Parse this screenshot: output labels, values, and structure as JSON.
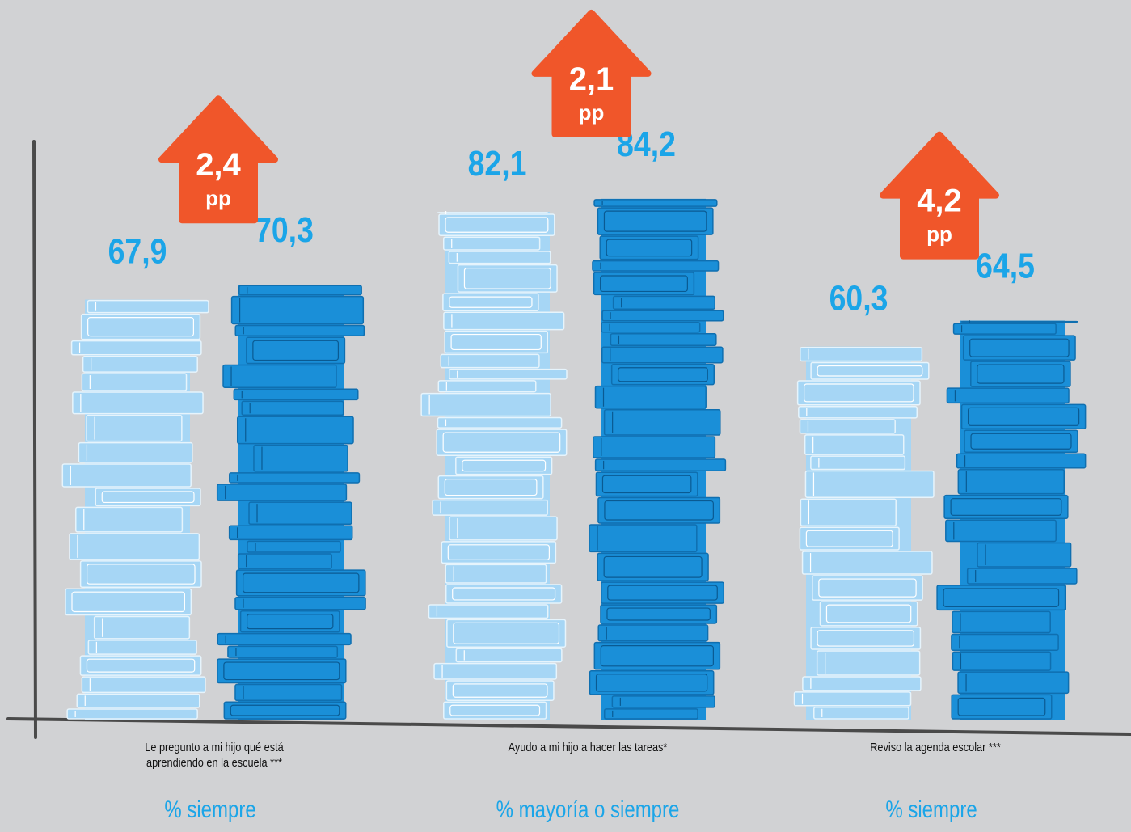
{
  "chart_data": {
    "type": "bar",
    "categories": [
      "Le pregunto a mi hijo qué está aprendiendo en la escuela ***",
      "Ayudo a mi hijo a hacer las tareas*",
      "Reviso la agenda escolar ***"
    ],
    "measures": [
      "% siempre",
      "% mayoría o siempre",
      "% siempre"
    ],
    "series": [
      {
        "color": "#a6d6f5",
        "values": [
          67.9,
          82.1,
          60.3
        ],
        "value_labels": [
          "67,9",
          "82,1",
          "60,3"
        ]
      },
      {
        "color": "#1a8fd8",
        "values": [
          70.3,
          84.2,
          64.5
        ],
        "value_labels": [
          "70,3",
          "84,2",
          "64,5"
        ]
      }
    ],
    "differences": [
      {
        "value": 2.4,
        "label": "2,4",
        "unit": "pp"
      },
      {
        "value": 2.1,
        "label": "2,1",
        "unit": "pp"
      },
      {
        "value": 4.2,
        "label": "4,2",
        "unit": "pp"
      }
    ],
    "value_label_color": "#1ba5e8",
    "arrow_color": "#f0562a"
  }
}
